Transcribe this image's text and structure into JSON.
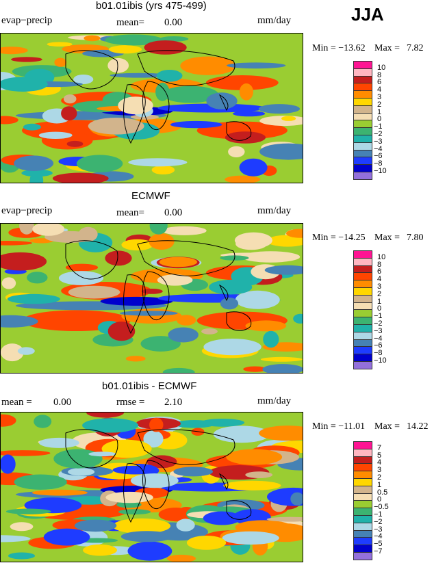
{
  "season": "JJA",
  "colors": {
    "pos10": "#ff1493",
    "pos8": "#ffb6c1",
    "pos6": "#c41e1e",
    "pos4": "#ff4500",
    "pos3": "#ff8c00",
    "pos2": "#ffd700",
    "pos1": "#d2b48c",
    "zero": "#f5deb3",
    "neg1": "#9acd32",
    "neg2": "#3cb371",
    "neg3": "#20b2aa",
    "neg4": "#add8e6",
    "neg6": "#4682b4",
    "neg8": "#1e3cff",
    "neg10": "#0000cd",
    "lowest": "#9370db"
  },
  "panels": [
    {
      "title": "b01.01ibis (yrs 475-499)",
      "left_label": "evap−precip",
      "mean_label": "mean=",
      "mean_value": "0.00",
      "units": "mm/day",
      "min_label": "Min = −13.62",
      "max_label": "Max =",
      "max_value": "7.82",
      "colorbar": [
        "10",
        "8",
        "6",
        "4",
        "3",
        "2",
        "1",
        "0",
        "−1",
        "−2",
        "−3",
        "−4",
        "−6",
        "−8",
        "−10"
      ]
    },
    {
      "title": "ECMWF",
      "left_label": "evap−precip",
      "mean_label": "mean=",
      "mean_value": "0.00",
      "units": "mm/day",
      "min_label": "Min = −14.25",
      "max_label": "Max =",
      "max_value": "7.80",
      "colorbar": [
        "10",
        "8",
        "6",
        "4",
        "3",
        "2",
        "1",
        "0",
        "−1",
        "−2",
        "−3",
        "−4",
        "−6",
        "−8",
        "−10"
      ]
    },
    {
      "title": "b01.01ibis - ECMWF",
      "left_label": "mean =",
      "mean_label": "rmse =",
      "left_value": "0.00",
      "mean_value": "2.10",
      "units": "mm/day",
      "min_label": "Min = −11.01",
      "max_label": "Max =",
      "max_value": "14.22",
      "colorbar": [
        "7",
        "5",
        "4",
        "3",
        "2",
        "1",
        "0.5",
        "0",
        "−0.5",
        "−1",
        "−2",
        "−3",
        "−4",
        "−5",
        "−7"
      ]
    }
  ],
  "chart_data": [
    {
      "type": "heatmap",
      "title": "b01.01ibis (yrs 475-499)",
      "variable": "evap−precip",
      "units": "mm/day",
      "mean": 0.0,
      "min": -13.62,
      "max": 7.82,
      "levels": [
        10,
        8,
        6,
        4,
        3,
        2,
        1,
        0,
        -1,
        -2,
        -3,
        -4,
        -6,
        -8,
        -10
      ]
    },
    {
      "type": "heatmap",
      "title": "ECMWF",
      "variable": "evap−precip",
      "units": "mm/day",
      "mean": 0.0,
      "min": -14.25,
      "max": 7.8,
      "levels": [
        10,
        8,
        6,
        4,
        3,
        2,
        1,
        0,
        -1,
        -2,
        -3,
        -4,
        -6,
        -8,
        -10
      ]
    },
    {
      "type": "heatmap",
      "title": "b01.01ibis - ECMWF",
      "units": "mm/day",
      "mean": 0.0,
      "rmse": 2.1,
      "min": -11.01,
      "max": 14.22,
      "levels": [
        7,
        5,
        4,
        3,
        2,
        1,
        0.5,
        0,
        -0.5,
        -1,
        -2,
        -3,
        -4,
        -5,
        -7
      ]
    }
  ]
}
